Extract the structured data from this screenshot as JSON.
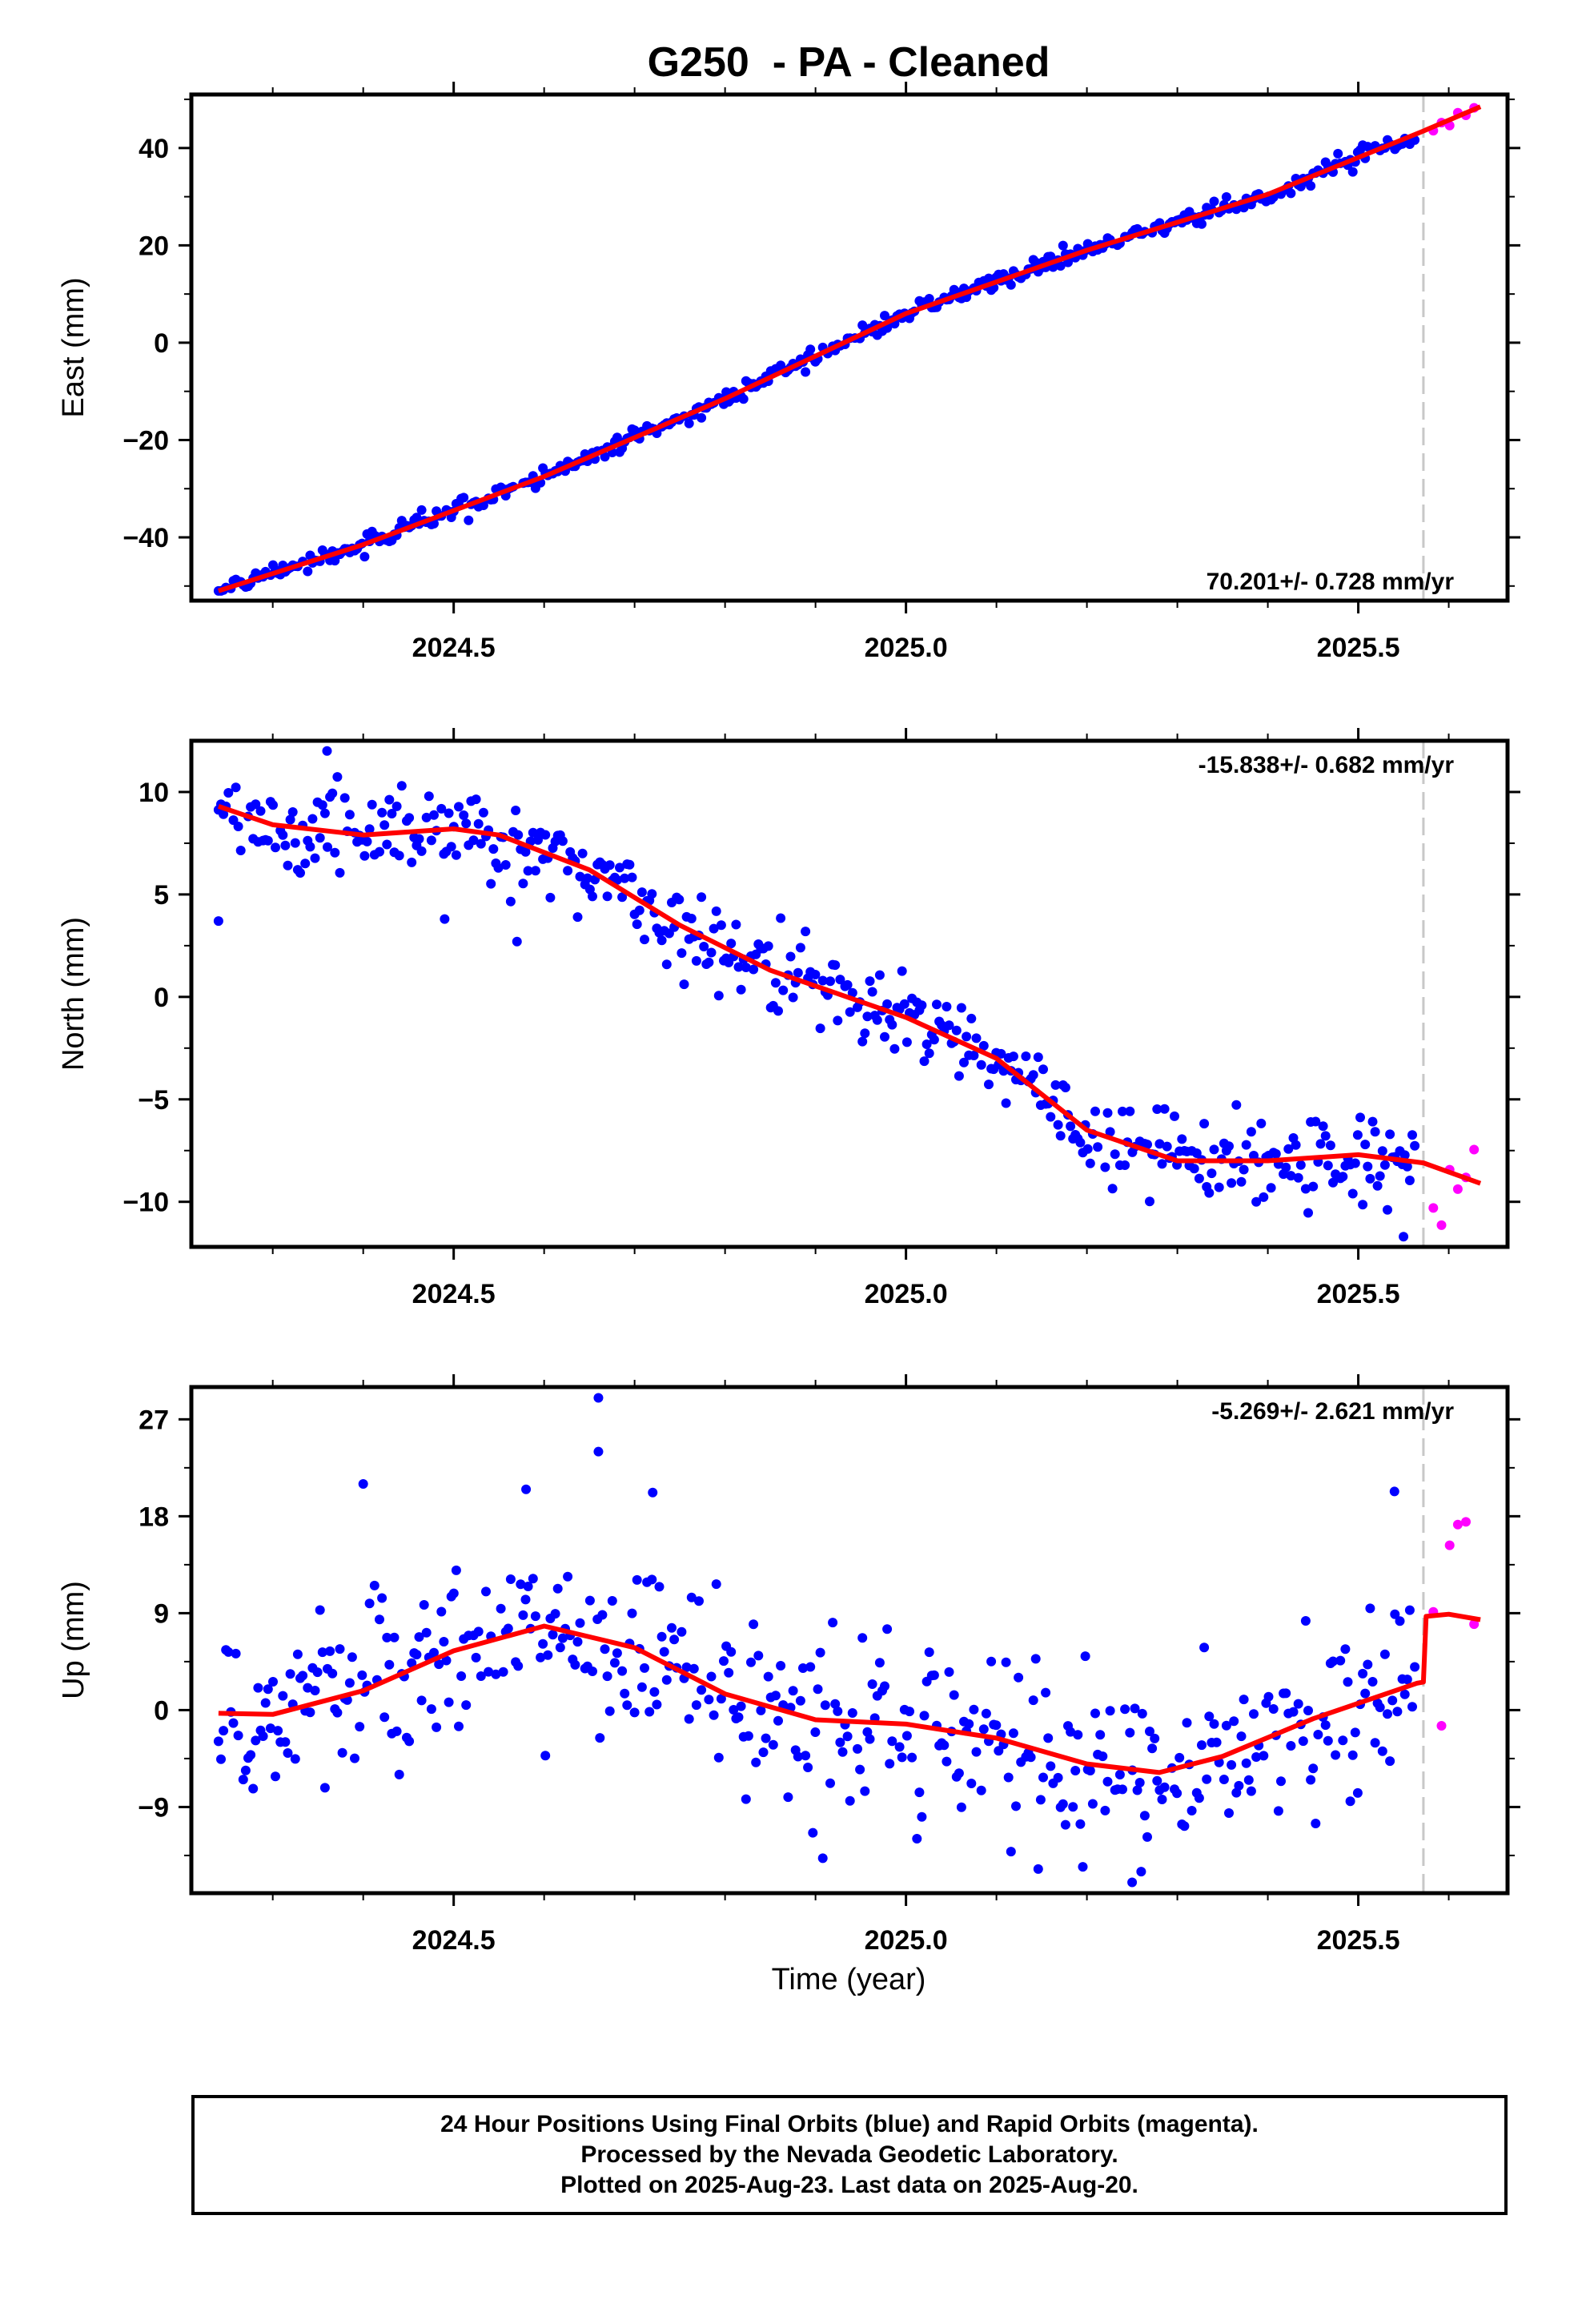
{
  "title": "G250  - PA - Cleaned",
  "xlabel": "Time (year)",
  "footer": {
    "line1": "24 Hour Positions Using Final Orbits (blue) and Rapid Orbits (magenta).",
    "line2": "Processed by the Nevada Geodetic Laboratory.",
    "line3": "Plotted on 2025-Aug-23. Last data on 2025-Aug-20."
  },
  "colors": {
    "final": "#0000ff",
    "rapid": "#ff00ff",
    "model": "#ff0000",
    "divider": "#c8c8c8"
  },
  "chart_data": [
    {
      "type": "scatter",
      "ylabel": "East (mm)",
      "rate": "70.201+/- 0.728 mm/yr",
      "rate_position": "bottom-right",
      "xlim": [
        2024.21,
        2025.665
      ],
      "ylim": [
        -53,
        51
      ],
      "yticks": [
        40,
        20,
        0,
        -20,
        -40
      ],
      "yticklabels": [
        "40",
        "20",
        "0",
        "−20",
        "−40"
      ],
      "xticks": [
        2024.5,
        2025.0,
        2025.5
      ],
      "xticklabels": [
        "2024.5",
        "2025.0",
        "2025.5"
      ],
      "divider_x": 2025.572,
      "final_start": 2024.24,
      "final_end": 2025.565,
      "rapid_start": 2025.583,
      "rapid_end": 2025.635,
      "model": [
        [
          2024.24,
          -51
        ],
        [
          2024.4,
          -41.5
        ],
        [
          2024.6,
          -27.5
        ],
        [
          2024.8,
          -11.5
        ],
        [
          2025.0,
          6
        ],
        [
          2025.2,
          19
        ],
        [
          2025.4,
          30.5
        ],
        [
          2025.572,
          43.5
        ],
        [
          2025.635,
          48.5
        ]
      ],
      "noise": 0.9,
      "rapid_noise": 0.9,
      "outliers": []
    },
    {
      "type": "scatter",
      "ylabel": "North (mm)",
      "rate": "-15.838+/- 0.682 mm/yr",
      "rate_position": "top-right",
      "xlim": [
        2024.21,
        2025.665
      ],
      "ylim": [
        -12.2,
        12.5
      ],
      "yticks": [
        10,
        5,
        0,
        -5,
        -10
      ],
      "yticklabels": [
        "10",
        "5",
        "0",
        "−5",
        "−10"
      ],
      "xticks": [
        2024.5,
        2025.0,
        2025.5
      ],
      "xticklabels": [
        "2024.5",
        "2025.0",
        "2025.5"
      ],
      "divider_x": 2025.572,
      "final_start": 2024.24,
      "final_end": 2025.565,
      "rapid_start": 2025.583,
      "rapid_end": 2025.635,
      "model": [
        [
          2024.24,
          9.3
        ],
        [
          2024.3,
          8.4
        ],
        [
          2024.4,
          7.9
        ],
        [
          2024.5,
          8.2
        ],
        [
          2024.55,
          7.9
        ],
        [
          2024.65,
          6.2
        ],
        [
          2024.75,
          3.5
        ],
        [
          2024.85,
          1.3
        ],
        [
          2025.0,
          -1.0
        ],
        [
          2025.1,
          -3.0
        ],
        [
          2025.2,
          -6.5
        ],
        [
          2025.3,
          -8.0
        ],
        [
          2025.4,
          -8.0
        ],
        [
          2025.5,
          -7.7
        ],
        [
          2025.572,
          -8.1
        ],
        [
          2025.635,
          -9.1
        ]
      ],
      "noise": 1.1,
      "rapid_noise": 1.8,
      "outliers": [
        [
          2024.36,
          12.0
        ],
        [
          2024.24,
          3.7
        ],
        [
          2024.49,
          3.8
        ],
        [
          2024.57,
          2.7
        ],
        [
          2025.55,
          -11.7
        ]
      ]
    },
    {
      "type": "scatter",
      "ylabel": "Up (mm)",
      "rate": "-5.269+/- 2.621 mm/yr",
      "rate_position": "top-right",
      "xlim": [
        2024.21,
        2025.665
      ],
      "ylim": [
        -17,
        30
      ],
      "yticks": [
        27,
        18,
        9,
        0,
        -9
      ],
      "yticklabels": [
        "27",
        "18",
        "9",
        "0",
        "−9"
      ],
      "xticks": [
        2024.5,
        2025.0,
        2025.5
      ],
      "xticklabels": [
        "2024.5",
        "2025.0",
        "2025.5"
      ],
      "divider_x": 2025.572,
      "final_start": 2024.24,
      "final_end": 2025.565,
      "rapid_start": 2025.583,
      "rapid_end": 2025.635,
      "model": [
        [
          2024.24,
          -0.3
        ],
        [
          2024.3,
          -0.4
        ],
        [
          2024.4,
          1.8
        ],
        [
          2024.5,
          5.5
        ],
        [
          2024.6,
          7.8
        ],
        [
          2024.7,
          5.8
        ],
        [
          2024.8,
          1.5
        ],
        [
          2024.9,
          -0.9
        ],
        [
          2025.0,
          -1.3
        ],
        [
          2025.1,
          -2.6
        ],
        [
          2025.2,
          -5.0
        ],
        [
          2025.28,
          -5.8
        ],
        [
          2025.35,
          -4.3
        ],
        [
          2025.45,
          -0.8
        ],
        [
          2025.565,
          2.5
        ],
        [
          2025.572,
          2.6
        ],
        [
          2025.575,
          8.7
        ],
        [
          2025.6,
          8.9
        ],
        [
          2025.635,
          8.4
        ]
      ],
      "noise": 4.2,
      "rapid_noise": 6.5,
      "outliers": [
        [
          2024.66,
          29.0
        ],
        [
          2024.66,
          24.0
        ],
        [
          2024.4,
          21.0
        ],
        [
          2024.58,
          20.5
        ],
        [
          2024.72,
          20.2
        ],
        [
          2025.54,
          20.3
        ],
        [
          2025.26,
          -15.0
        ],
        [
          2025.25,
          -16.0
        ]
      ]
    }
  ]
}
